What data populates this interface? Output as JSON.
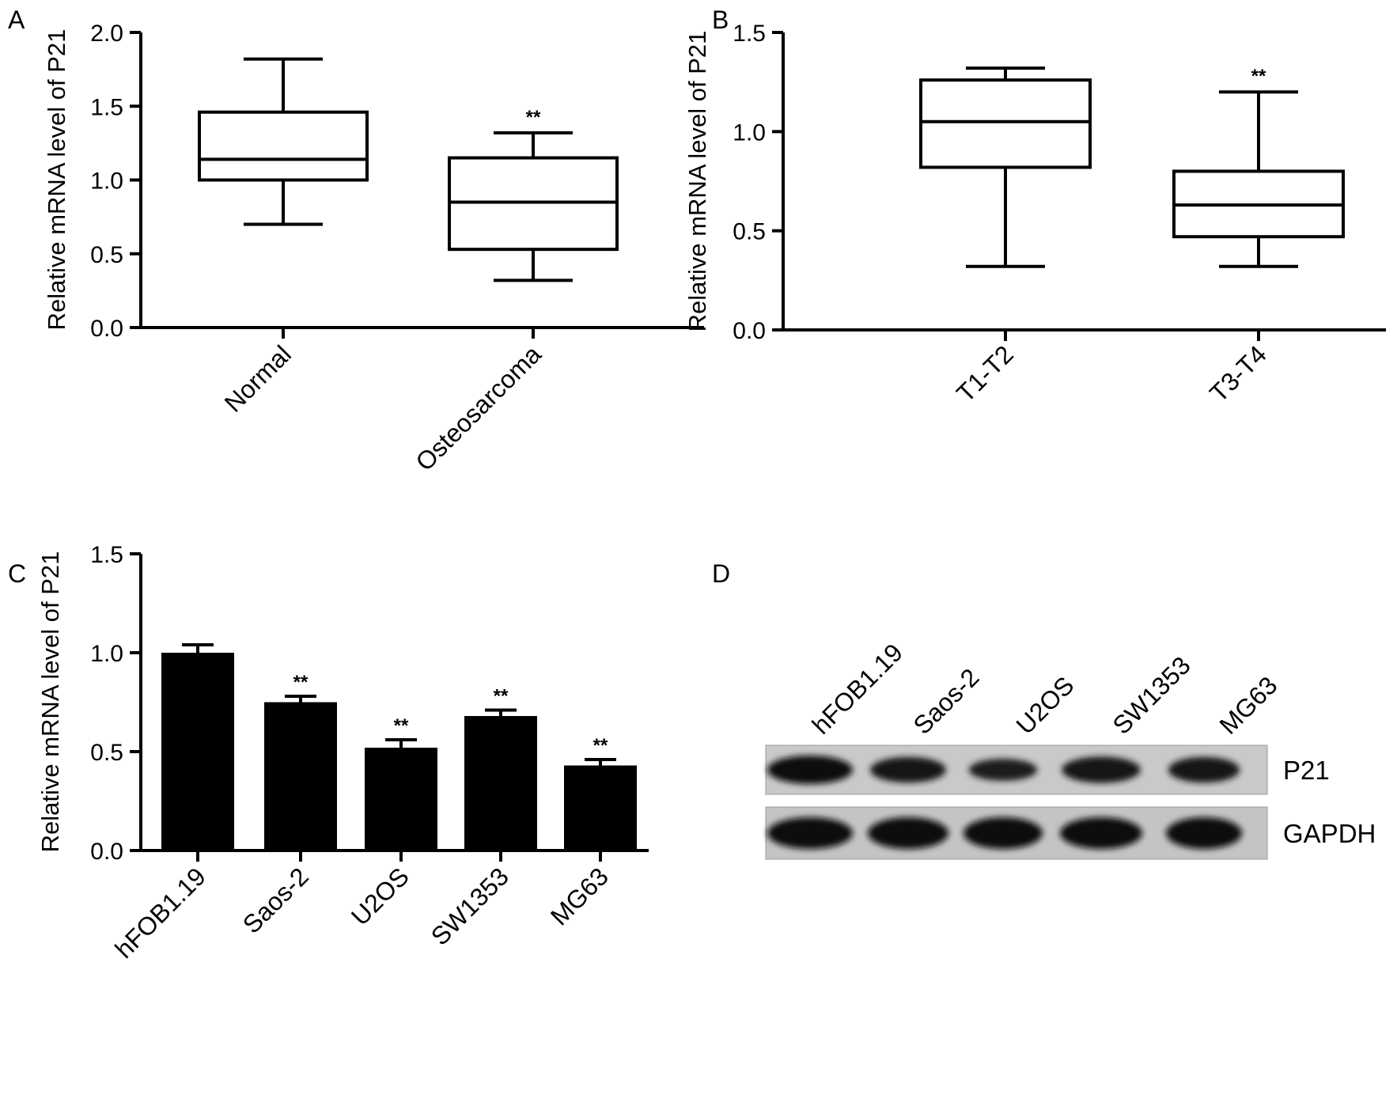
{
  "panels": [
    {
      "letter": "A"
    },
    {
      "letter": "B"
    },
    {
      "letter": "C"
    },
    {
      "letter": "D"
    }
  ],
  "chart_data": [
    {
      "panel": "A",
      "type": "box",
      "ylabel": "Relative mRNA level of P21",
      "ylim": [
        0,
        2.0
      ],
      "yticks": [
        "0.0",
        "0.5",
        "1.0",
        "1.5",
        "2.0"
      ],
      "categories": [
        "Normal",
        "Osteosarcoma"
      ],
      "boxes": [
        {
          "min": 0.7,
          "q1": 1.0,
          "median": 1.14,
          "q3": 1.46,
          "max": 1.82,
          "annotation": ""
        },
        {
          "min": 0.32,
          "q1": 0.53,
          "median": 0.85,
          "q3": 1.15,
          "max": 1.32,
          "annotation": "**"
        }
      ]
    },
    {
      "panel": "B",
      "type": "box",
      "ylabel": "Relative mRNA level of P21",
      "ylim": [
        0,
        1.5
      ],
      "yticks": [
        "0.0",
        "0.5",
        "1.0",
        "1.5"
      ],
      "categories": [
        "T1-T2",
        "T3-T4"
      ],
      "boxes": [
        {
          "min": 0.32,
          "q1": 0.82,
          "median": 1.05,
          "q3": 1.26,
          "max": 1.32,
          "annotation": ""
        },
        {
          "min": 0.32,
          "q1": 0.47,
          "median": 0.63,
          "q3": 0.8,
          "max": 1.2,
          "annotation": "**"
        }
      ]
    },
    {
      "panel": "C",
      "type": "bar",
      "ylabel": "Relative mRNA level of P21",
      "ylim": [
        0,
        1.5
      ],
      "yticks": [
        "0.0",
        "0.5",
        "1.0",
        "1.5"
      ],
      "categories": [
        "hFOB1.19",
        "Saos-2",
        "U2OS",
        "SW1353",
        "MG63"
      ],
      "values": [
        1.0,
        0.75,
        0.52,
        0.68,
        0.43
      ],
      "errors": [
        0.04,
        0.03,
        0.04,
        0.03,
        0.03
      ],
      "annotations": [
        "",
        "**",
        "**",
        "**",
        "**"
      ]
    }
  ],
  "western_blot": {
    "panel": "D",
    "lanes": [
      "hFOB1.19",
      "Saos-2",
      "U2OS",
      "SW1353",
      "MG63"
    ],
    "rows": [
      {
        "label": "P21",
        "intensity": [
          1.0,
          0.8,
          0.55,
          0.85,
          0.8
        ]
      },
      {
        "label": "GAPDH",
        "intensity": [
          1.0,
          1.0,
          1.0,
          1.0,
          1.0
        ]
      }
    ]
  }
}
